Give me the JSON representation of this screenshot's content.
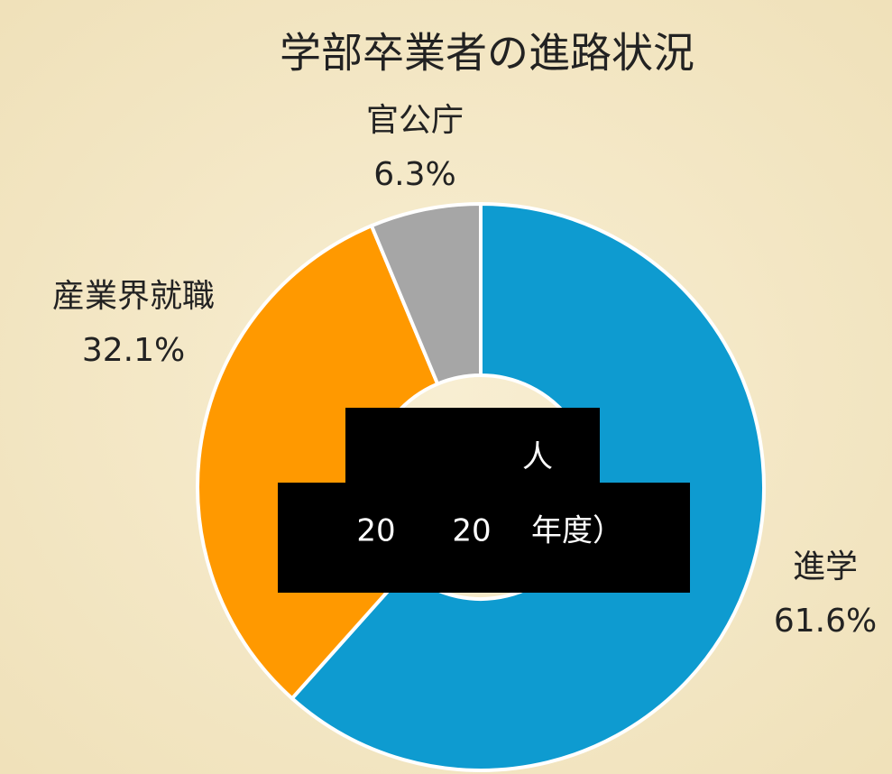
{
  "chart_data": {
    "type": "donut",
    "title": "学部卒業者の進路状況",
    "categories": [
      "進学",
      "産業界就職",
      "官公庁"
    ],
    "values": [
      61.6,
      32.1,
      6.3
    ],
    "value_labels": [
      "61.6%",
      "32.1%",
      "6.3%"
    ],
    "colors": [
      "#0e9bd0",
      "#ff9900",
      "#a6a6a6"
    ],
    "center_texts": [
      "人",
      "20",
      "20",
      "年度）"
    ]
  }
}
